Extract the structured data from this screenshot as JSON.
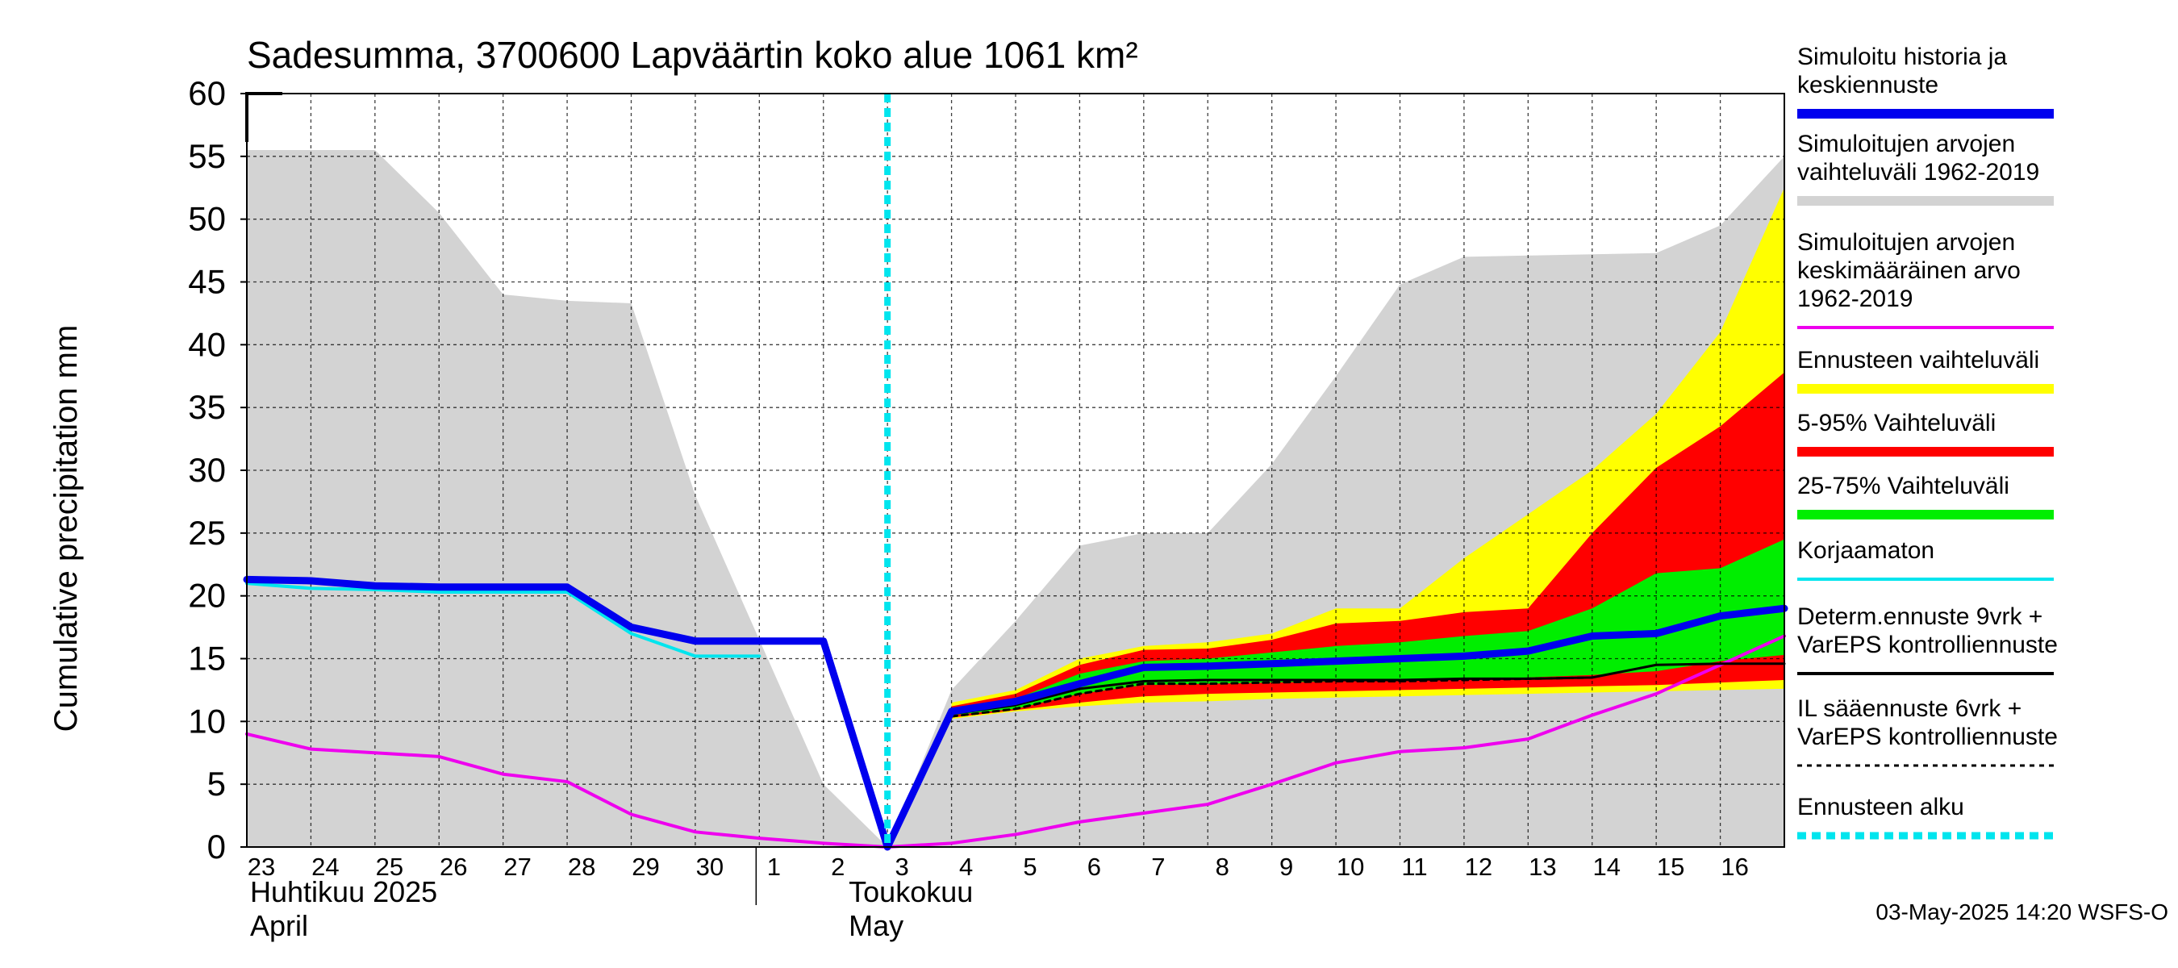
{
  "chart_data": {
    "type": "area",
    "title": "Sadesumma, 3700600 Lapväärtin koko alue 1061 km²",
    "ylabel": "Cumulative precipitation   mm",
    "ylim": [
      0,
      60
    ],
    "yticks": [
      0,
      5,
      10,
      15,
      20,
      25,
      30,
      35,
      40,
      45,
      50,
      55,
      60
    ],
    "x_days": [
      "23",
      "24",
      "25",
      "26",
      "27",
      "28",
      "29",
      "30",
      "1",
      "2",
      "3",
      "4",
      "5",
      "6",
      "7",
      "8",
      "9",
      "10",
      "11",
      "12",
      "13",
      "14",
      "15",
      "16"
    ],
    "month_labels": [
      {
        "line1": "Huhtikuu  2025",
        "line2": "April"
      },
      {
        "line1": "Toukokuu",
        "line2": "May"
      }
    ],
    "forecast_start_index": 10,
    "series": [
      {
        "name": "hist_range",
        "kind": "band",
        "x": [
          0,
          1,
          2,
          3,
          4,
          5,
          6,
          7,
          8,
          9,
          10,
          11,
          12,
          13,
          14,
          15,
          16,
          17,
          18,
          19,
          20,
          21,
          22,
          23,
          24
        ],
        "upper": [
          55.5,
          55.5,
          55.5,
          50.5,
          44.0,
          43.5,
          43.3,
          28.0,
          16.5,
          5.0,
          0.0,
          12.5,
          18.0,
          24.0,
          25.0,
          25.0,
          30.5,
          37.5,
          44.8,
          47.0,
          47.1,
          47.2,
          47.3,
          49.5,
          55.0
        ],
        "lower": [
          0,
          0,
          0,
          0,
          0,
          0,
          0,
          0,
          0,
          0,
          0,
          0,
          0,
          0,
          0,
          0,
          0,
          0,
          0,
          0,
          0,
          0,
          0,
          0,
          0
        ]
      },
      {
        "name": "ens_range",
        "kind": "band",
        "x": [
          11,
          12,
          13,
          14,
          15,
          16,
          17,
          18,
          19,
          20,
          21,
          22,
          23,
          24
        ],
        "upper": [
          11.5,
          12.5,
          15.0,
          16.0,
          16.3,
          17.0,
          19.0,
          19.0,
          23.0,
          26.5,
          30.0,
          34.5,
          41.0,
          52.5
        ],
        "lower": [
          10.2,
          10.8,
          11.2,
          11.5,
          11.6,
          11.8,
          11.9,
          12.0,
          12.1,
          12.2,
          12.3,
          12.4,
          12.5,
          12.6
        ]
      },
      {
        "name": "p5_95",
        "kind": "band",
        "x": [
          11,
          12,
          13,
          14,
          15,
          16,
          17,
          18,
          19,
          20,
          21,
          22,
          23,
          24
        ],
        "upper": [
          11.2,
          12.2,
          14.5,
          15.7,
          15.8,
          16.5,
          17.8,
          18.0,
          18.7,
          19.0,
          25.0,
          30.2,
          33.5,
          37.8
        ],
        "lower": [
          10.3,
          10.9,
          11.5,
          12.0,
          12.2,
          12.3,
          12.4,
          12.5,
          12.6,
          12.7,
          12.8,
          12.9,
          13.1,
          13.3
        ]
      },
      {
        "name": "p25_75",
        "kind": "band",
        "x": [
          11,
          12,
          13,
          14,
          15,
          16,
          17,
          18,
          19,
          20,
          21,
          22,
          23,
          24
        ],
        "upper": [
          11.0,
          11.8,
          13.8,
          14.8,
          15.0,
          15.5,
          16.0,
          16.3,
          16.8,
          17.2,
          19.0,
          21.8,
          22.2,
          24.5
        ],
        "lower": [
          10.5,
          11.0,
          12.2,
          12.9,
          13.0,
          13.1,
          13.2,
          13.3,
          13.4,
          13.5,
          13.7,
          14.0,
          14.8,
          15.3
        ]
      },
      {
        "name": "hist_mean",
        "kind": "line",
        "x": [
          0,
          1,
          2,
          3,
          4,
          5,
          6,
          7,
          8,
          9,
          10,
          11,
          12,
          13,
          14,
          15,
          16,
          17,
          18,
          19,
          20,
          21,
          22,
          23,
          24
        ],
        "y": [
          9.0,
          7.8,
          7.5,
          7.2,
          5.8,
          5.2,
          2.6,
          1.2,
          0.7,
          0.3,
          0.0,
          0.3,
          1.0,
          2.0,
          2.7,
          3.4,
          5.0,
          6.7,
          7.6,
          7.9,
          8.6,
          10.5,
          12.2,
          14.5,
          16.8
        ],
        "color": "#ee00ee"
      },
      {
        "name": "uncorrected",
        "kind": "line",
        "x": [
          0,
          1,
          2,
          3,
          4,
          5,
          6,
          7,
          8
        ],
        "y": [
          21.0,
          20.6,
          20.5,
          20.3,
          20.3,
          20.3,
          17.0,
          15.2,
          15.2
        ],
        "color": "#00e5ee"
      },
      {
        "name": "il_forecast",
        "kind": "line",
        "dashed": true,
        "x": [
          11,
          12,
          13,
          14,
          15,
          16,
          17,
          18,
          19,
          20,
          21
        ],
        "y": [
          10.4,
          11.0,
          12.2,
          13.0,
          13.0,
          13.1,
          13.2,
          13.2,
          13.3,
          13.4,
          13.5
        ],
        "color": "#000000"
      },
      {
        "name": "determ",
        "kind": "line",
        "x": [
          11,
          12,
          13,
          14,
          15,
          16,
          17,
          18,
          19,
          20,
          21,
          22,
          23,
          24
        ],
        "y": [
          10.6,
          11.3,
          12.6,
          13.2,
          13.3,
          13.3,
          13.3,
          13.3,
          13.4,
          13.4,
          13.5,
          14.5,
          14.6,
          14.6
        ],
        "color": "#000000"
      },
      {
        "name": "sim_history",
        "kind": "line",
        "x": [
          0,
          1,
          2,
          3,
          4,
          5,
          6,
          7,
          8,
          9,
          10,
          11,
          12,
          13,
          14,
          15,
          16,
          17,
          18,
          19,
          20,
          21,
          22,
          23,
          24
        ],
        "y": [
          21.3,
          21.2,
          20.8,
          20.7,
          20.7,
          20.7,
          17.5,
          16.4,
          16.4,
          16.4,
          0.0,
          10.8,
          11.6,
          13.0,
          14.3,
          14.4,
          14.6,
          14.8,
          15.0,
          15.2,
          15.6,
          16.8,
          17.0,
          18.4,
          19.0
        ],
        "color": "#0000ee"
      }
    ],
    "legend": [
      {
        "key": "sim_history",
        "line1": "Simuloitu historia ja",
        "line2": "keskiennuste",
        "line3": "",
        "color": "#0000ee",
        "swatch": "thick"
      },
      {
        "key": "hist_range",
        "line1": "Simuloitujen arvojen",
        "line2": "vaihteluväli 1962-2019",
        "line3": "",
        "color": "#d3d3d3",
        "swatch": "thick"
      },
      {
        "key": "hist_mean",
        "line1": "Simuloitujen arvojen",
        "line2": "keskimääräinen arvo",
        "line3": "   1962-2019",
        "color": "#ee00ee",
        "swatch": "thin"
      },
      {
        "key": "ens_range",
        "line1": "Ennusteen vaihteluväli",
        "line2": "",
        "line3": "",
        "color": "#ffff00",
        "swatch": "thick"
      },
      {
        "key": "p5_95",
        "line1": "5-95% Vaihteluväli",
        "line2": "",
        "line3": "",
        "color": "#ff0000",
        "swatch": "thick"
      },
      {
        "key": "p25_75",
        "line1": "25-75% Vaihteluväli",
        "line2": "",
        "line3": "",
        "color": "#00ee00",
        "swatch": "thick"
      },
      {
        "key": "uncorrected",
        "line1": "Korjaamaton",
        "line2": "",
        "line3": "",
        "color": "#00e5ee",
        "swatch": "thin"
      },
      {
        "key": "determ",
        "line1": "Determ.ennuste 9vrk +",
        "line2": "VarEPS kontrolliennuste",
        "line3": "",
        "color": "#000000",
        "swatch": "thin"
      },
      {
        "key": "il_forecast",
        "line1": "IL sääennuste 6vrk  +",
        "line2": "  VarEPS kontrolliennuste",
        "line3": "",
        "color": "#000000",
        "swatch": "dashed"
      },
      {
        "key": "forecast_start",
        "line1": "Ennusteen alku",
        "line2": "",
        "line3": "",
        "color": "#00e5ee",
        "swatch": "dotted"
      }
    ],
    "timestamp": "03-May-2025 14:20 WSFS-O"
  }
}
